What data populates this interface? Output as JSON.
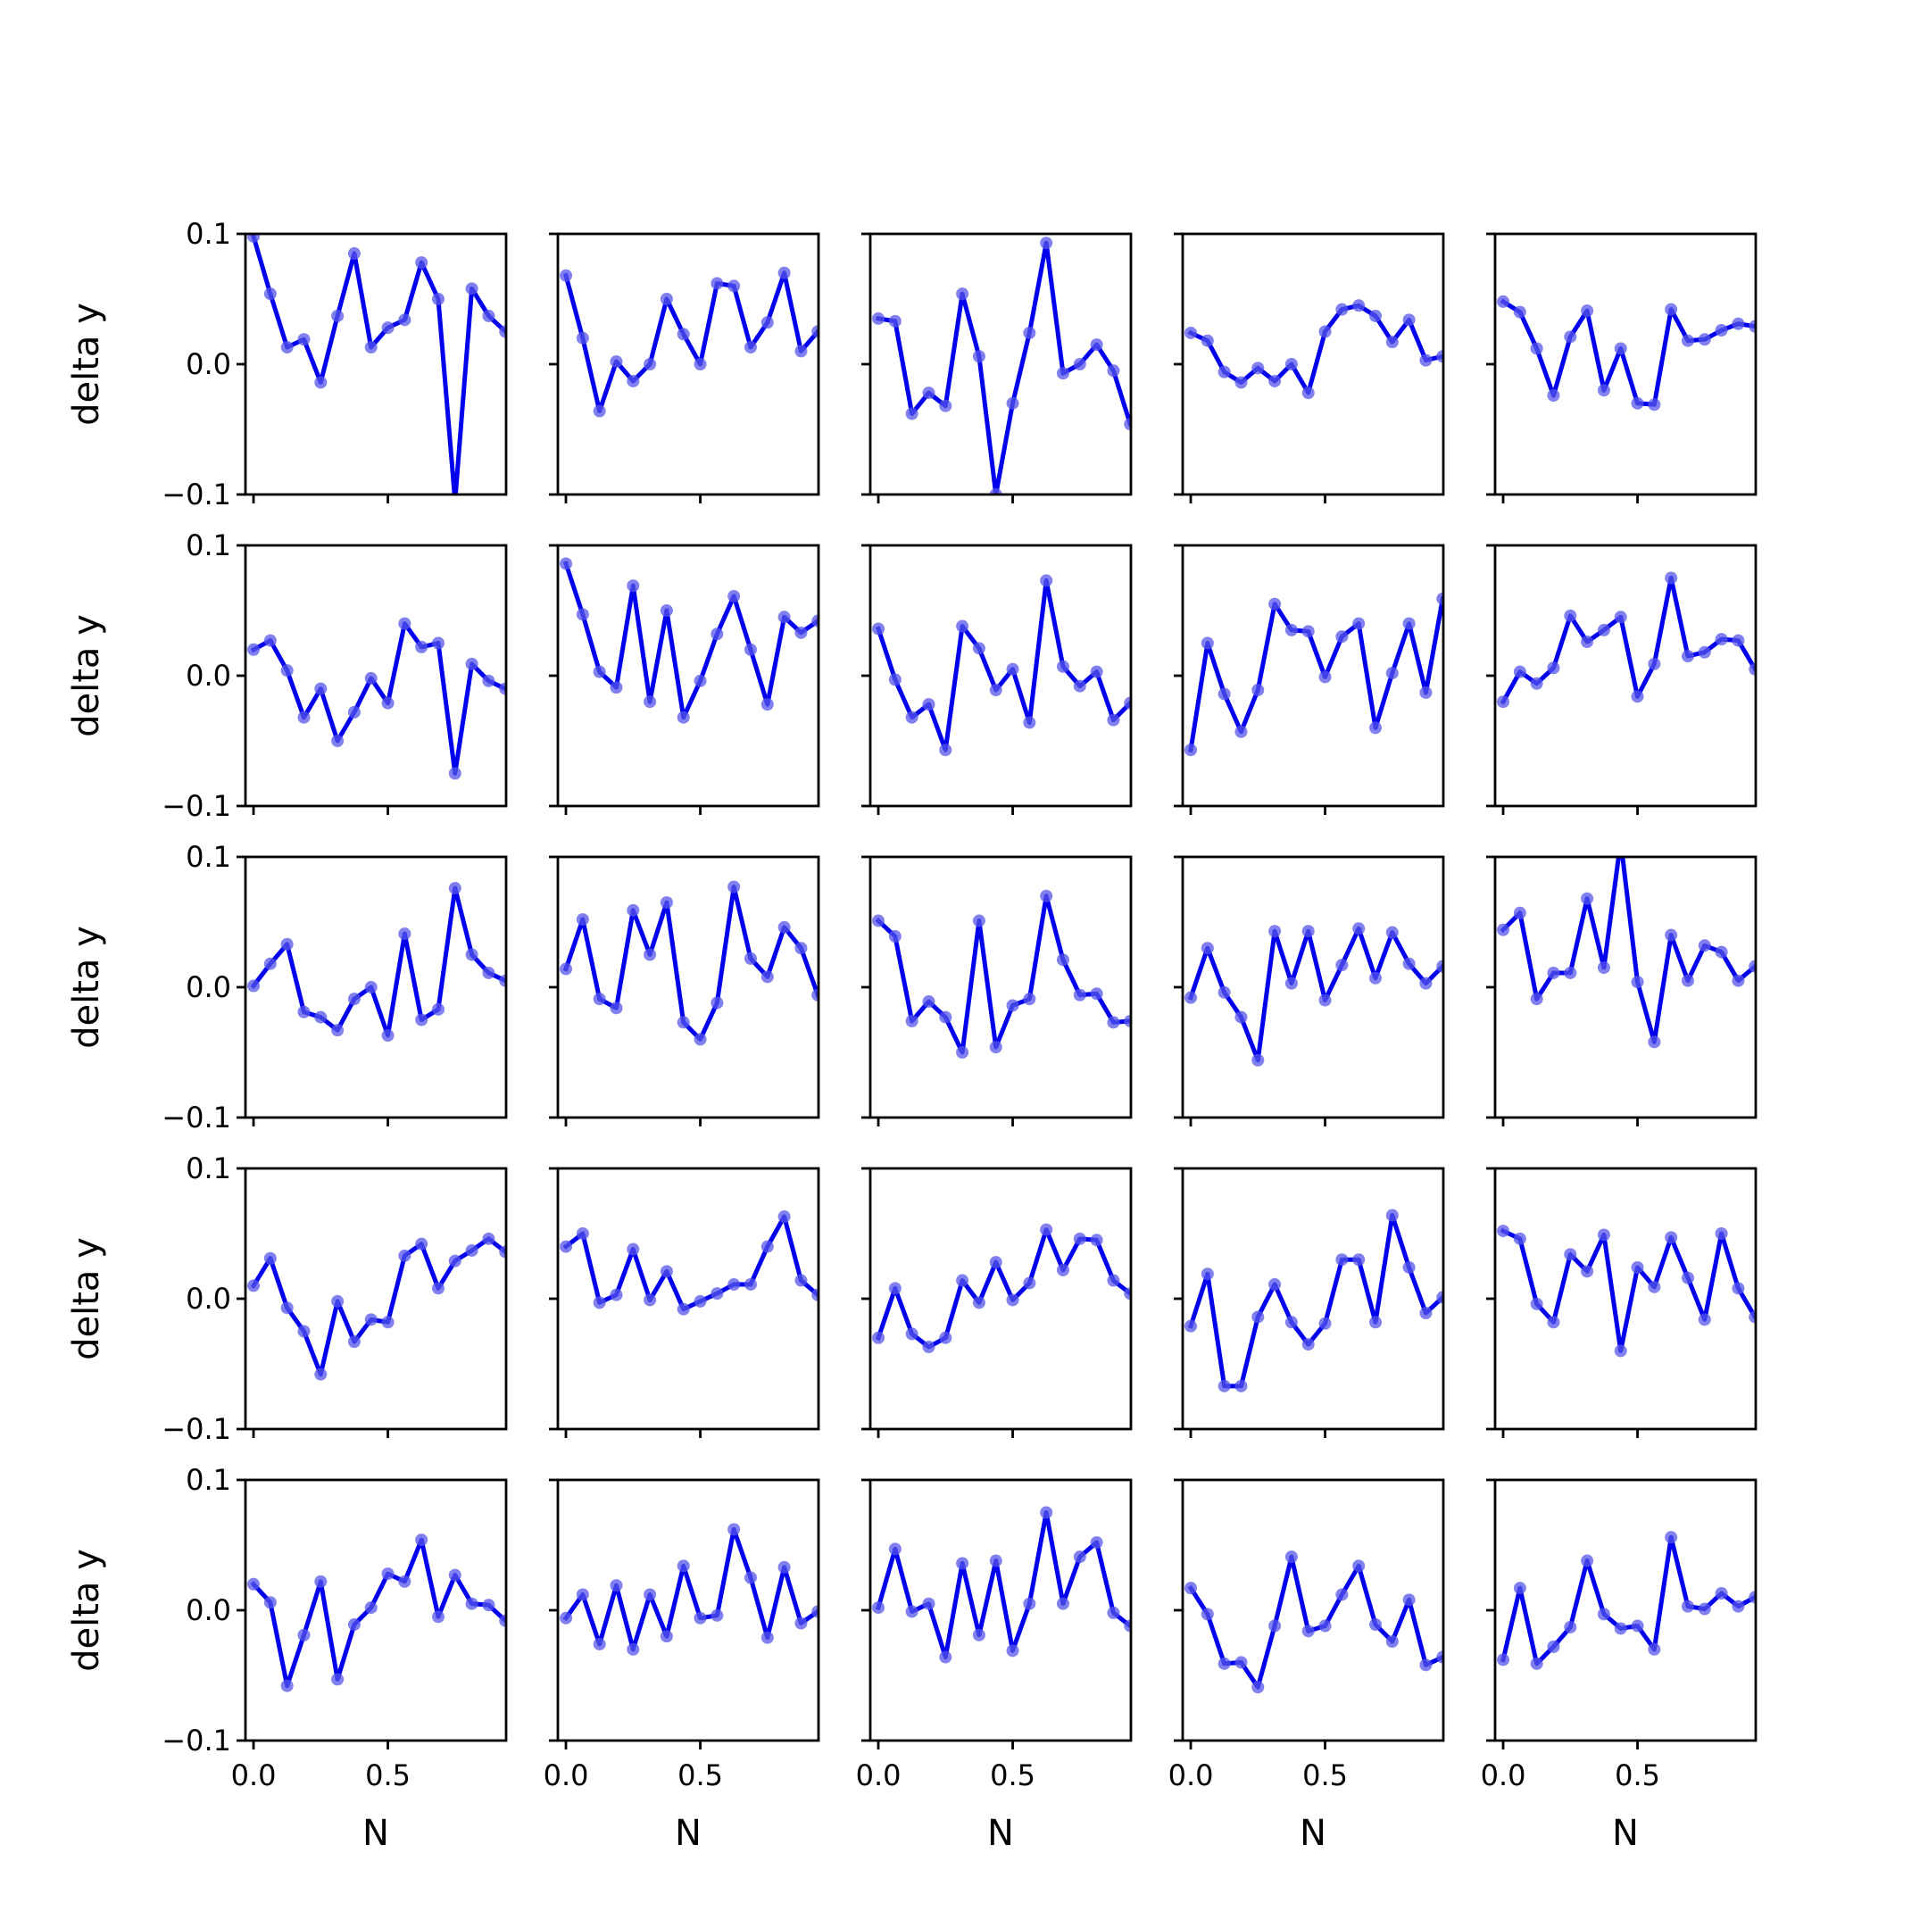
{
  "chart_data": {
    "type": "line",
    "layout": "5x5 grid of small multiples",
    "x": [
      0.0,
      0.0625,
      0.125,
      0.1875,
      0.25,
      0.3125,
      0.375,
      0.4375,
      0.5,
      0.5625,
      0.625,
      0.6875,
      0.75,
      0.8125,
      0.875,
      0.9375
    ],
    "xlabel": "N",
    "ylabel": "delta y",
    "xlim": [
      -0.03,
      0.94
    ],
    "ylim": [
      -0.1,
      0.1
    ],
    "xticks": [
      0.0,
      0.5
    ],
    "xtick_labels": [
      "0.0",
      "0.5"
    ],
    "yticks": [
      0.1,
      0.0,
      -0.1
    ],
    "ytick_labels": [
      "0.1",
      "0.0",
      "−0.1"
    ],
    "line_color": "#0000ee",
    "marker_color": "#5555e8",
    "grid": false,
    "panels": [
      {
        "values": [
          0.098,
          0.054,
          0.013,
          0.019,
          -0.014,
          0.037,
          0.085,
          0.013,
          0.028,
          0.034,
          0.078,
          0.05,
          -0.105,
          0.058,
          0.037,
          0.025
        ]
      },
      {
        "values": [
          0.068,
          0.02,
          -0.036,
          0.002,
          -0.013,
          0.0,
          0.05,
          0.023,
          0.0,
          0.062,
          0.06,
          0.013,
          0.032,
          0.07,
          0.01,
          0.025
        ]
      },
      {
        "values": [
          0.035,
          0.033,
          -0.038,
          -0.022,
          -0.032,
          0.054,
          0.006,
          -0.1,
          -0.03,
          0.024,
          0.093,
          -0.007,
          0.0,
          0.015,
          -0.005,
          -0.046
        ]
      },
      {
        "values": [
          0.024,
          0.018,
          -0.006,
          -0.014,
          -0.003,
          -0.013,
          0.0,
          -0.022,
          0.025,
          0.042,
          0.045,
          0.037,
          0.017,
          0.034,
          0.003,
          0.006
        ]
      },
      {
        "values": [
          0.048,
          0.04,
          0.012,
          -0.024,
          0.021,
          0.041,
          -0.02,
          0.012,
          -0.03,
          -0.031,
          0.042,
          0.018,
          0.019,
          0.026,
          0.031,
          0.029
        ]
      },
      {
        "values": [
          0.02,
          0.027,
          0.004,
          -0.032,
          -0.01,
          -0.05,
          -0.028,
          -0.002,
          -0.021,
          0.04,
          0.022,
          0.025,
          -0.075,
          0.009,
          -0.004,
          -0.01
        ]
      },
      {
        "values": [
          0.086,
          0.047,
          0.003,
          -0.009,
          0.069,
          -0.02,
          0.05,
          -0.032,
          -0.004,
          0.032,
          0.061,
          0.02,
          -0.022,
          0.045,
          0.033,
          0.042
        ]
      },
      {
        "values": [
          0.036,
          -0.003,
          -0.032,
          -0.022,
          -0.057,
          0.038,
          0.021,
          -0.011,
          0.005,
          -0.036,
          0.073,
          0.007,
          -0.008,
          0.003,
          -0.034,
          -0.021
        ]
      },
      {
        "values": [
          -0.057,
          0.025,
          -0.014,
          -0.043,
          -0.011,
          0.055,
          0.035,
          0.034,
          -0.001,
          0.03,
          0.04,
          -0.04,
          0.002,
          0.04,
          -0.013,
          0.059
        ]
      },
      {
        "values": [
          -0.02,
          0.003,
          -0.006,
          0.006,
          0.046,
          0.026,
          0.035,
          0.045,
          -0.016,
          0.009,
          0.075,
          0.015,
          0.018,
          0.028,
          0.027,
          0.005
        ]
      },
      {
        "values": [
          0.001,
          0.018,
          0.033,
          -0.019,
          -0.023,
          -0.033,
          -0.009,
          0.0,
          -0.037,
          0.041,
          -0.025,
          -0.017,
          0.076,
          0.025,
          0.011,
          0.005
        ]
      },
      {
        "values": [
          0.014,
          0.052,
          -0.009,
          -0.016,
          0.059,
          0.025,
          0.065,
          -0.027,
          -0.04,
          -0.012,
          0.077,
          0.022,
          0.008,
          0.046,
          0.03,
          -0.006
        ]
      },
      {
        "values": [
          0.051,
          0.039,
          -0.026,
          -0.011,
          -0.023,
          -0.05,
          0.051,
          -0.046,
          -0.014,
          -0.009,
          0.07,
          0.021,
          -0.006,
          -0.005,
          -0.027,
          -0.026
        ]
      },
      {
        "values": [
          -0.008,
          0.03,
          -0.004,
          -0.023,
          -0.056,
          0.043,
          0.003,
          0.043,
          -0.01,
          0.017,
          0.045,
          0.007,
          0.042,
          0.018,
          0.003,
          0.016
        ]
      },
      {
        "values": [
          0.044,
          0.057,
          -0.009,
          0.011,
          0.011,
          0.068,
          0.015,
          0.112,
          0.004,
          -0.042,
          0.04,
          0.005,
          0.032,
          0.027,
          0.005,
          0.016
        ]
      },
      {
        "values": [
          0.01,
          0.031,
          -0.007,
          -0.025,
          -0.058,
          -0.002,
          -0.033,
          -0.016,
          -0.018,
          0.033,
          0.042,
          0.008,
          0.029,
          0.037,
          0.046,
          0.036
        ]
      },
      {
        "values": [
          0.04,
          0.05,
          -0.003,
          0.003,
          0.038,
          -0.001,
          0.021,
          -0.008,
          -0.002,
          0.004,
          0.011,
          0.011,
          0.04,
          0.063,
          0.014,
          0.003
        ]
      },
      {
        "values": [
          -0.03,
          0.008,
          -0.027,
          -0.037,
          -0.03,
          0.014,
          -0.003,
          0.028,
          -0.001,
          0.012,
          0.053,
          0.022,
          0.046,
          0.045,
          0.014,
          0.004
        ]
      },
      {
        "values": [
          -0.021,
          0.019,
          -0.067,
          -0.067,
          -0.014,
          0.011,
          -0.018,
          -0.035,
          -0.019,
          0.03,
          0.03,
          -0.018,
          0.064,
          0.024,
          -0.011,
          0.001
        ]
      },
      {
        "values": [
          0.052,
          0.046,
          -0.004,
          -0.018,
          0.034,
          0.021,
          0.049,
          -0.04,
          0.024,
          0.009,
          0.047,
          0.016,
          -0.016,
          0.05,
          0.008,
          -0.014
        ]
      },
      {
        "values": [
          0.02,
          0.006,
          -0.058,
          -0.019,
          0.022,
          -0.053,
          -0.011,
          0.002,
          0.028,
          0.022,
          0.054,
          -0.005,
          0.027,
          0.005,
          0.004,
          -0.008
        ]
      },
      {
        "values": [
          -0.006,
          0.012,
          -0.026,
          0.019,
          -0.03,
          0.012,
          -0.02,
          0.034,
          -0.006,
          -0.004,
          0.062,
          0.025,
          -0.021,
          0.033,
          -0.01,
          -0.001
        ]
      },
      {
        "values": [
          0.002,
          0.047,
          -0.001,
          0.005,
          -0.036,
          0.036,
          -0.019,
          0.038,
          -0.031,
          0.005,
          0.075,
          0.005,
          0.041,
          0.052,
          -0.002,
          -0.012
        ]
      },
      {
        "values": [
          0.017,
          -0.003,
          -0.041,
          -0.04,
          -0.059,
          -0.012,
          0.041,
          -0.016,
          -0.012,
          0.012,
          0.034,
          -0.011,
          -0.024,
          0.008,
          -0.042,
          -0.036
        ]
      },
      {
        "values": [
          -0.038,
          0.017,
          -0.041,
          -0.028,
          -0.013,
          0.038,
          -0.003,
          -0.014,
          -0.012,
          -0.03,
          0.056,
          0.003,
          0.001,
          0.013,
          0.003,
          0.01
        ]
      }
    ]
  }
}
